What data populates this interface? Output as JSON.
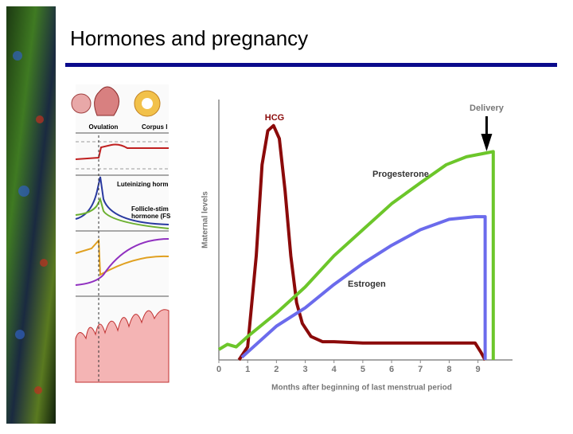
{
  "slide": {
    "title": "Hormones and pregnancy"
  },
  "side_figure": {
    "labels": [
      "Ovulation",
      "Corpus l",
      "Luteinizing horm",
      "Follicle-stim",
      "hormone (FS"
    ]
  },
  "chart_data": {
    "type": "line",
    "x_label": "Months after beginning of last menstrual period",
    "y_label": "Maternal levels",
    "xlim": [
      0,
      10.2
    ],
    "xticks": [
      0,
      1,
      2,
      3,
      4,
      5,
      6,
      7,
      8,
      9
    ],
    "ylim": [
      0,
      100
    ],
    "annotations": [
      {
        "text": "Delivery",
        "x": 9.3
      }
    ],
    "series": [
      {
        "name": "HCG",
        "color": "#8b0a0a",
        "x": [
          0.7,
          1.0,
          1.3,
          1.5,
          1.7,
          1.9,
          2.1,
          2.3,
          2.5,
          2.7,
          2.9,
          3.2,
          3.6,
          4,
          5,
          6,
          7,
          8,
          8.9,
          9.1,
          9.25
        ],
        "values": [
          0,
          5,
          40,
          75,
          88,
          90,
          85,
          65,
          40,
          22,
          14,
          9,
          7,
          7,
          6.5,
          6.5,
          6.5,
          6.5,
          6.5,
          3,
          0
        ]
      },
      {
        "name": "Progesterone",
        "color": "#6cc62a",
        "x": [
          0,
          0.3,
          0.6,
          1,
          2,
          3,
          4,
          5,
          6,
          7,
          7.9,
          8.6,
          9.53,
          9.53
        ],
        "values": [
          4,
          6,
          5,
          9,
          18,
          28,
          40,
          50,
          60,
          68,
          75,
          78,
          80,
          0
        ]
      },
      {
        "name": "Estrogen",
        "color": "#6b6bec",
        "x": [
          0.8,
          2,
          3,
          4,
          5,
          6,
          7,
          8,
          8.9,
          9.25,
          9.25
        ],
        "values": [
          1,
          13,
          20,
          29,
          37,
          44,
          50,
          54,
          55,
          55,
          0
        ]
      }
    ]
  }
}
